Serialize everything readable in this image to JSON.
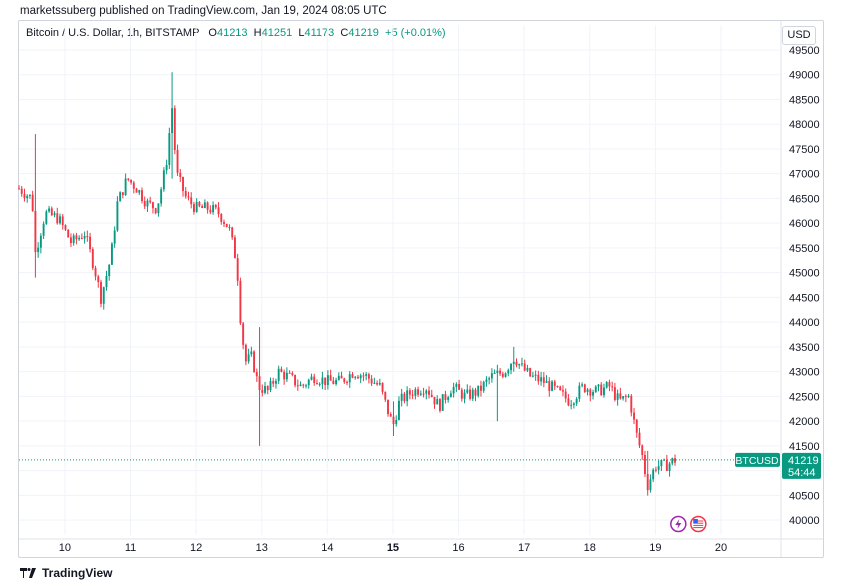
{
  "caption": "marketssuberg published on TradingView.com, Jan 19, 2024 08:05 UTC",
  "legend": {
    "symbol": "Bitcoin / U.S. Dollar, 1h, BITSTAMP",
    "o_label": "O",
    "o": "41213",
    "h_label": "H",
    "h": "41251",
    "l_label": "L",
    "l": "41173",
    "c_label": "C",
    "c": "41219",
    "change": "+5 (+0.01%)"
  },
  "currency_button": "USD",
  "price_tag": {
    "ticker": "BTCUSD",
    "price": "41219",
    "countdown": "54:44"
  },
  "footer": {
    "brand": "TradingView"
  },
  "colors": {
    "up": "#089981",
    "down": "#f23645",
    "grid": "#f0f3fa",
    "accent": "#089981"
  },
  "icons": [
    "lightning-event-icon",
    "us-flag-event-icon"
  ],
  "chart_data": {
    "type": "candlestick",
    "title": "Bitcoin / U.S. Dollar, 1h, BITSTAMP",
    "xlabel": "",
    "ylabel": "",
    "ylim": [
      39700,
      49600
    ],
    "y_ticks": [
      40000,
      40500,
      41000,
      41500,
      42000,
      42500,
      43000,
      43500,
      44000,
      44500,
      45000,
      45500,
      46000,
      46500,
      47000,
      47500,
      48000,
      48500,
      49000,
      49500
    ],
    "x_ticks": [
      {
        "label": "10",
        "day": 10
      },
      {
        "label": "11",
        "day": 11
      },
      {
        "label": "12",
        "day": 12
      },
      {
        "label": "13",
        "day": 13
      },
      {
        "label": "14",
        "day": 14
      },
      {
        "label": "15",
        "day": 15
      },
      {
        "label": "16",
        "day": 16
      },
      {
        "label": "17",
        "day": 17
      },
      {
        "label": "18",
        "day": 18
      },
      {
        "label": "19",
        "day": 19
      },
      {
        "label": "20",
        "day": 20
      }
    ],
    "x_range_days": [
      9.3,
      20.9
    ],
    "grid": true,
    "last_price": 41219,
    "close_path": [
      [
        9.3,
        46700
      ],
      [
        9.5,
        46500
      ],
      [
        9.55,
        45400
      ],
      [
        9.7,
        46200
      ],
      [
        9.9,
        46100
      ],
      [
        10.1,
        45600
      ],
      [
        10.3,
        45800
      ],
      [
        10.45,
        45100
      ],
      [
        10.55,
        44500
      ],
      [
        10.7,
        45300
      ],
      [
        10.8,
        46400
      ],
      [
        10.95,
        46900
      ],
      [
        11.1,
        46700
      ],
      [
        11.25,
        46400
      ],
      [
        11.4,
        46300
      ],
      [
        11.5,
        46900
      ],
      [
        11.58,
        47500
      ],
      [
        11.62,
        48600
      ],
      [
        11.7,
        47000
      ],
      [
        11.85,
        46500
      ],
      [
        12.0,
        46300
      ],
      [
        12.2,
        46300
      ],
      [
        12.35,
        46200
      ],
      [
        12.5,
        45900
      ],
      [
        12.62,
        45200
      ],
      [
        12.68,
        44000
      ],
      [
        12.75,
        43200
      ],
      [
        12.85,
        43300
      ],
      [
        12.95,
        42700
      ],
      [
        13.1,
        42600
      ],
      [
        13.25,
        43000
      ],
      [
        13.4,
        42900
      ],
      [
        13.6,
        42700
      ],
      [
        13.8,
        42900
      ],
      [
        14.0,
        42800
      ],
      [
        14.2,
        42800
      ],
      [
        14.4,
        43000
      ],
      [
        14.6,
        42900
      ],
      [
        14.8,
        42700
      ],
      [
        14.9,
        42300
      ],
      [
        15.0,
        41900
      ],
      [
        15.1,
        42400
      ],
      [
        15.3,
        42600
      ],
      [
        15.5,
        42700
      ],
      [
        15.7,
        42300
      ],
      [
        15.9,
        42700
      ],
      [
        16.1,
        42500
      ],
      [
        16.3,
        42600
      ],
      [
        16.5,
        42900
      ],
      [
        16.7,
        43000
      ],
      [
        16.85,
        43300
      ],
      [
        16.95,
        43100
      ],
      [
        17.1,
        42900
      ],
      [
        17.3,
        42800
      ],
      [
        17.5,
        42600
      ],
      [
        17.7,
        42400
      ],
      [
        17.9,
        42700
      ],
      [
        18.1,
        42600
      ],
      [
        18.3,
        42700
      ],
      [
        18.45,
        42400
      ],
      [
        18.6,
        42500
      ],
      [
        18.7,
        41800
      ],
      [
        18.8,
        41300
      ],
      [
        18.88,
        40700
      ],
      [
        19.0,
        41100
      ],
      [
        19.15,
        41100
      ],
      [
        19.3,
        41219
      ]
    ],
    "extremes": [
      {
        "day": 9.55,
        "high": 47800,
        "low": 44900
      },
      {
        "day": 11.62,
        "high": 49050,
        "low": 46900
      },
      {
        "day": 12.95,
        "high": 43900,
        "low": 41500
      },
      {
        "day": 15.0,
        "high": 42400,
        "low": 41700
      },
      {
        "day": 16.6,
        "high": 43000,
        "low": 42000
      },
      {
        "day": 16.85,
        "high": 43500,
        "low": 43000
      },
      {
        "day": 18.9,
        "high": 41400,
        "low": 40600
      }
    ]
  }
}
